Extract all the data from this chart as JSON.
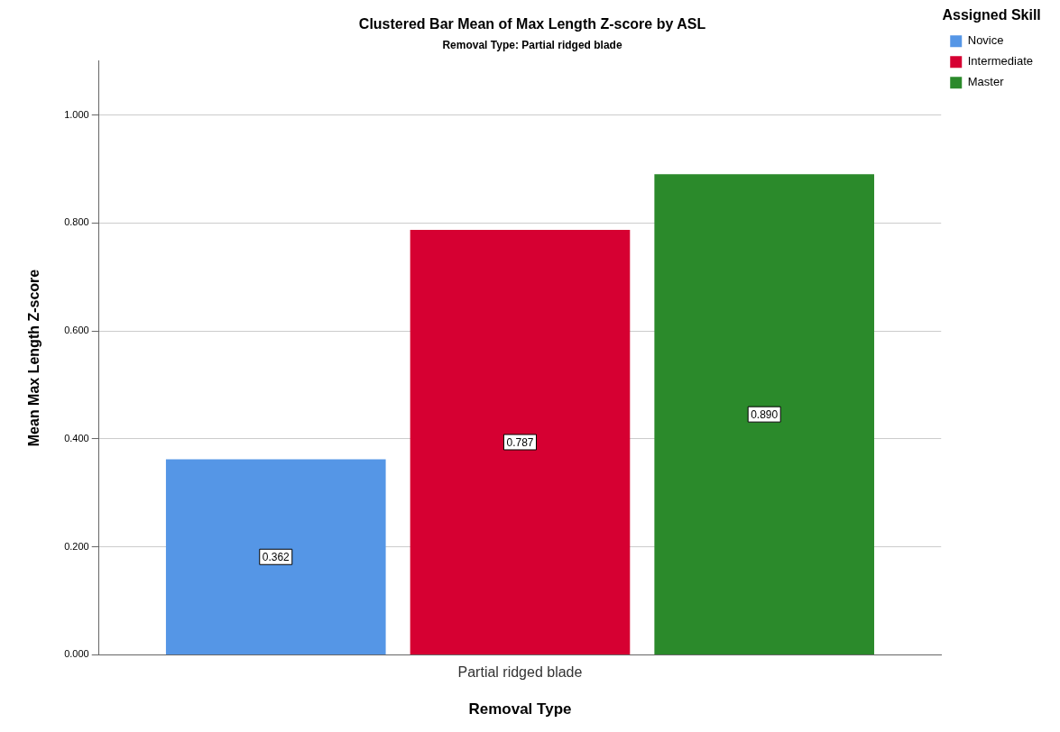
{
  "chart_data": {
    "type": "bar",
    "title": "Clustered Bar Mean of Max Length Z-score by ASL",
    "subtitle": "Removal Type: Partial ridged blade",
    "xlabel": "Removal Type",
    "ylabel": "Mean Max Length Z-score",
    "legend_title": "Assigned Skill",
    "legend": "top right",
    "grid": "y",
    "categories": [
      "Partial ridged blade"
    ],
    "series": [
      {
        "name": "Novice",
        "color": "#5596e6",
        "values": [
          0.362
        ],
        "value_labels": [
          "0.362"
        ]
      },
      {
        "name": "Intermediate",
        "color": "#d60032",
        "values": [
          0.787
        ],
        "value_labels": [
          "0.787"
        ]
      },
      {
        "name": "Master",
        "color": "#2b8a2b",
        "values": [
          0.89
        ],
        "value_labels": [
          "0.890"
        ]
      }
    ],
    "ylim": [
      0,
      1.1
    ],
    "yticks": [
      {
        "value": 0,
        "label": "0.000"
      },
      {
        "value": 0.2,
        "label": "0.200"
      },
      {
        "value": 0.4,
        "label": "0.400"
      },
      {
        "value": 0.6,
        "label": "0.600"
      },
      {
        "value": 0.8,
        "label": "0.800"
      },
      {
        "value": 1.0,
        "label": "1.000"
      }
    ]
  }
}
